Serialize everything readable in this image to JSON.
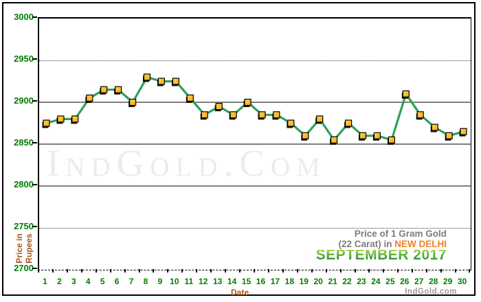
{
  "header": {},
  "watermark": "IndGold.Com",
  "footer_brand": "IndGold.com",
  "legend": {
    "line1": "Price of 1 Gram Gold",
    "line2_prefix": "(22 Carat) in ",
    "city": "NEW DELHI",
    "month": "SEPTEMBER 2017"
  },
  "axes": {
    "y_title_line1": "Price in",
    "y_title_line2": "Rupees",
    "x_title": "Date",
    "y_ticks": [
      "3000",
      "2950",
      "2900",
      "2850",
      "2800",
      "2750",
      "2700"
    ]
  },
  "colors": {
    "axis_text_green": "#007d00",
    "axis_title_brown": "#a5581c",
    "city_orange": "#f57e20",
    "month_green": "#3fa037",
    "line_green": "#2fa058",
    "marker_gold": "#ffa500",
    "marker_gold_light": "#ffd75e",
    "grid_gray": "#7f7f7f",
    "legend_gray": "#7d7d7d",
    "watermark_gray": "#edece8"
  },
  "chart_data": {
    "type": "line",
    "title": "Price of 1 Gram Gold (22 Carat) in New Delhi - September 2017",
    "xlabel": "Date",
    "ylabel": "Price in Rupees",
    "categories": [
      "1",
      "2",
      "3",
      "4",
      "5",
      "6",
      "7",
      "8",
      "9",
      "10",
      "11",
      "12",
      "13",
      "14",
      "15",
      "16",
      "17",
      "18",
      "19",
      "20",
      "21",
      "22",
      "23",
      "24",
      "25",
      "26",
      "27",
      "28",
      "29",
      "30"
    ],
    "series": [
      {
        "name": "Gold price (Rupees per gram, 22 carat)",
        "values": [
          2875,
          2880,
          2880,
          2905,
          2915,
          2915,
          2900,
          2930,
          2925,
          2925,
          2905,
          2885,
          2895,
          2885,
          2900,
          2885,
          2885,
          2875,
          2860,
          2880,
          2855,
          2875,
          2860,
          2860,
          2855,
          2910,
          2885,
          2870,
          2860,
          2865
        ]
      }
    ],
    "ylim": [
      2700,
      3000
    ],
    "y_tick_step": 50,
    "grid": true,
    "grid_styles": {
      "solid": [
        2900,
        2850,
        2800
      ],
      "dotted": [
        2950,
        2750
      ]
    },
    "legend_position": "bottom-right-inside",
    "marker": "square",
    "x_range_days": 30
  }
}
